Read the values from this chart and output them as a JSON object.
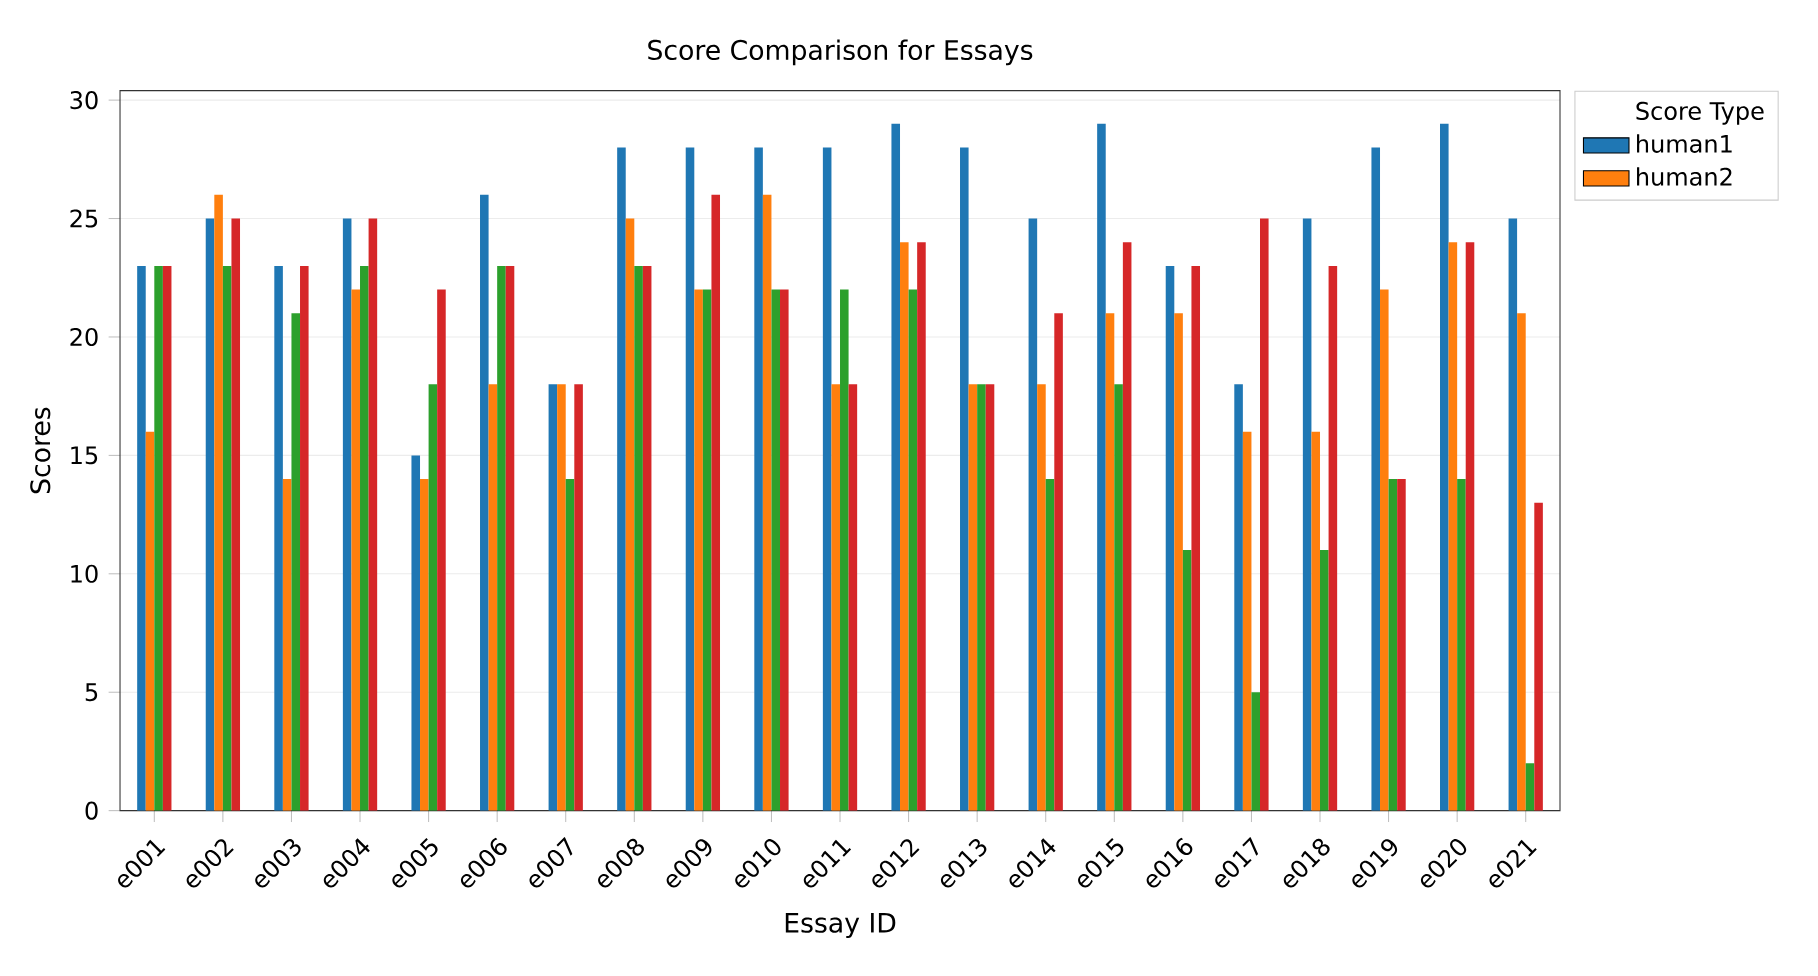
{
  "chart_data": {
    "type": "bar",
    "title": "Score Comparison for Essays",
    "xlabel": "Essay ID",
    "ylabel": "Scores",
    "legend_title": "Score Type",
    "categories": [
      "e001",
      "e002",
      "e003",
      "e004",
      "e005",
      "e006",
      "e007",
      "e008",
      "e009",
      "e010",
      "e011",
      "e012",
      "e013",
      "e014",
      "e015",
      "e016",
      "e017",
      "e018",
      "e019",
      "e020",
      "e021"
    ],
    "series": [
      {
        "name": "human1",
        "color": "#1f77b4",
        "values": [
          23,
          25,
          23,
          25,
          15,
          26,
          18,
          28,
          28,
          28,
          28,
          29,
          28,
          25,
          29,
          23,
          18,
          25,
          28,
          29,
          25
        ]
      },
      {
        "name": "human2",
        "color": "#ff7f0e",
        "values": [
          16,
          26,
          14,
          22,
          14,
          18,
          18,
          25,
          22,
          26,
          18,
          24,
          18,
          18,
          21,
          21,
          16,
          16,
          22,
          24,
          21
        ]
      },
      {
        "color": "#2ca02c",
        "values": [
          23,
          23,
          21,
          23,
          18,
          23,
          14,
          23,
          22,
          22,
          22,
          22,
          18,
          14,
          18,
          11,
          5,
          11,
          14,
          14,
          2
        ]
      },
      {
        "color": "#d62728",
        "values": [
          23,
          25,
          23,
          25,
          22,
          23,
          18,
          23,
          26,
          22,
          18,
          24,
          18,
          21,
          24,
          23,
          25,
          23,
          14,
          24,
          13
        ]
      }
    ],
    "ylim": [
      0,
      30.4
    ],
    "yticks": [
      0,
      5,
      10,
      15,
      20,
      25,
      30
    ],
    "grid": "y",
    "legend": "top right"
  }
}
